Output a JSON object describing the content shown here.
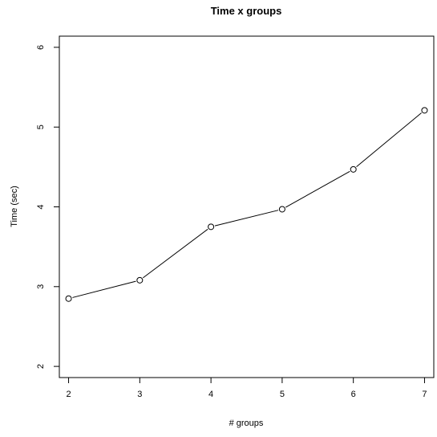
{
  "chart_data": {
    "type": "line",
    "title": "Time x groups",
    "xlabel": "# groups",
    "ylabel": "Time (sec)",
    "x": [
      2,
      3,
      4,
      5,
      6,
      7
    ],
    "series": [
      {
        "values": [
          2.85,
          3.08,
          3.75,
          3.97,
          4.47,
          5.21
        ]
      }
    ],
    "xlim": [
      1.87,
      7.13
    ],
    "ylim": [
      1.86,
      6.14
    ],
    "xticks": [
      2,
      3,
      4,
      5,
      6,
      7
    ],
    "yticks": [
      2,
      3,
      4,
      5,
      6
    ],
    "grid": false,
    "marker": "open-circle",
    "line_color": "#000000"
  }
}
